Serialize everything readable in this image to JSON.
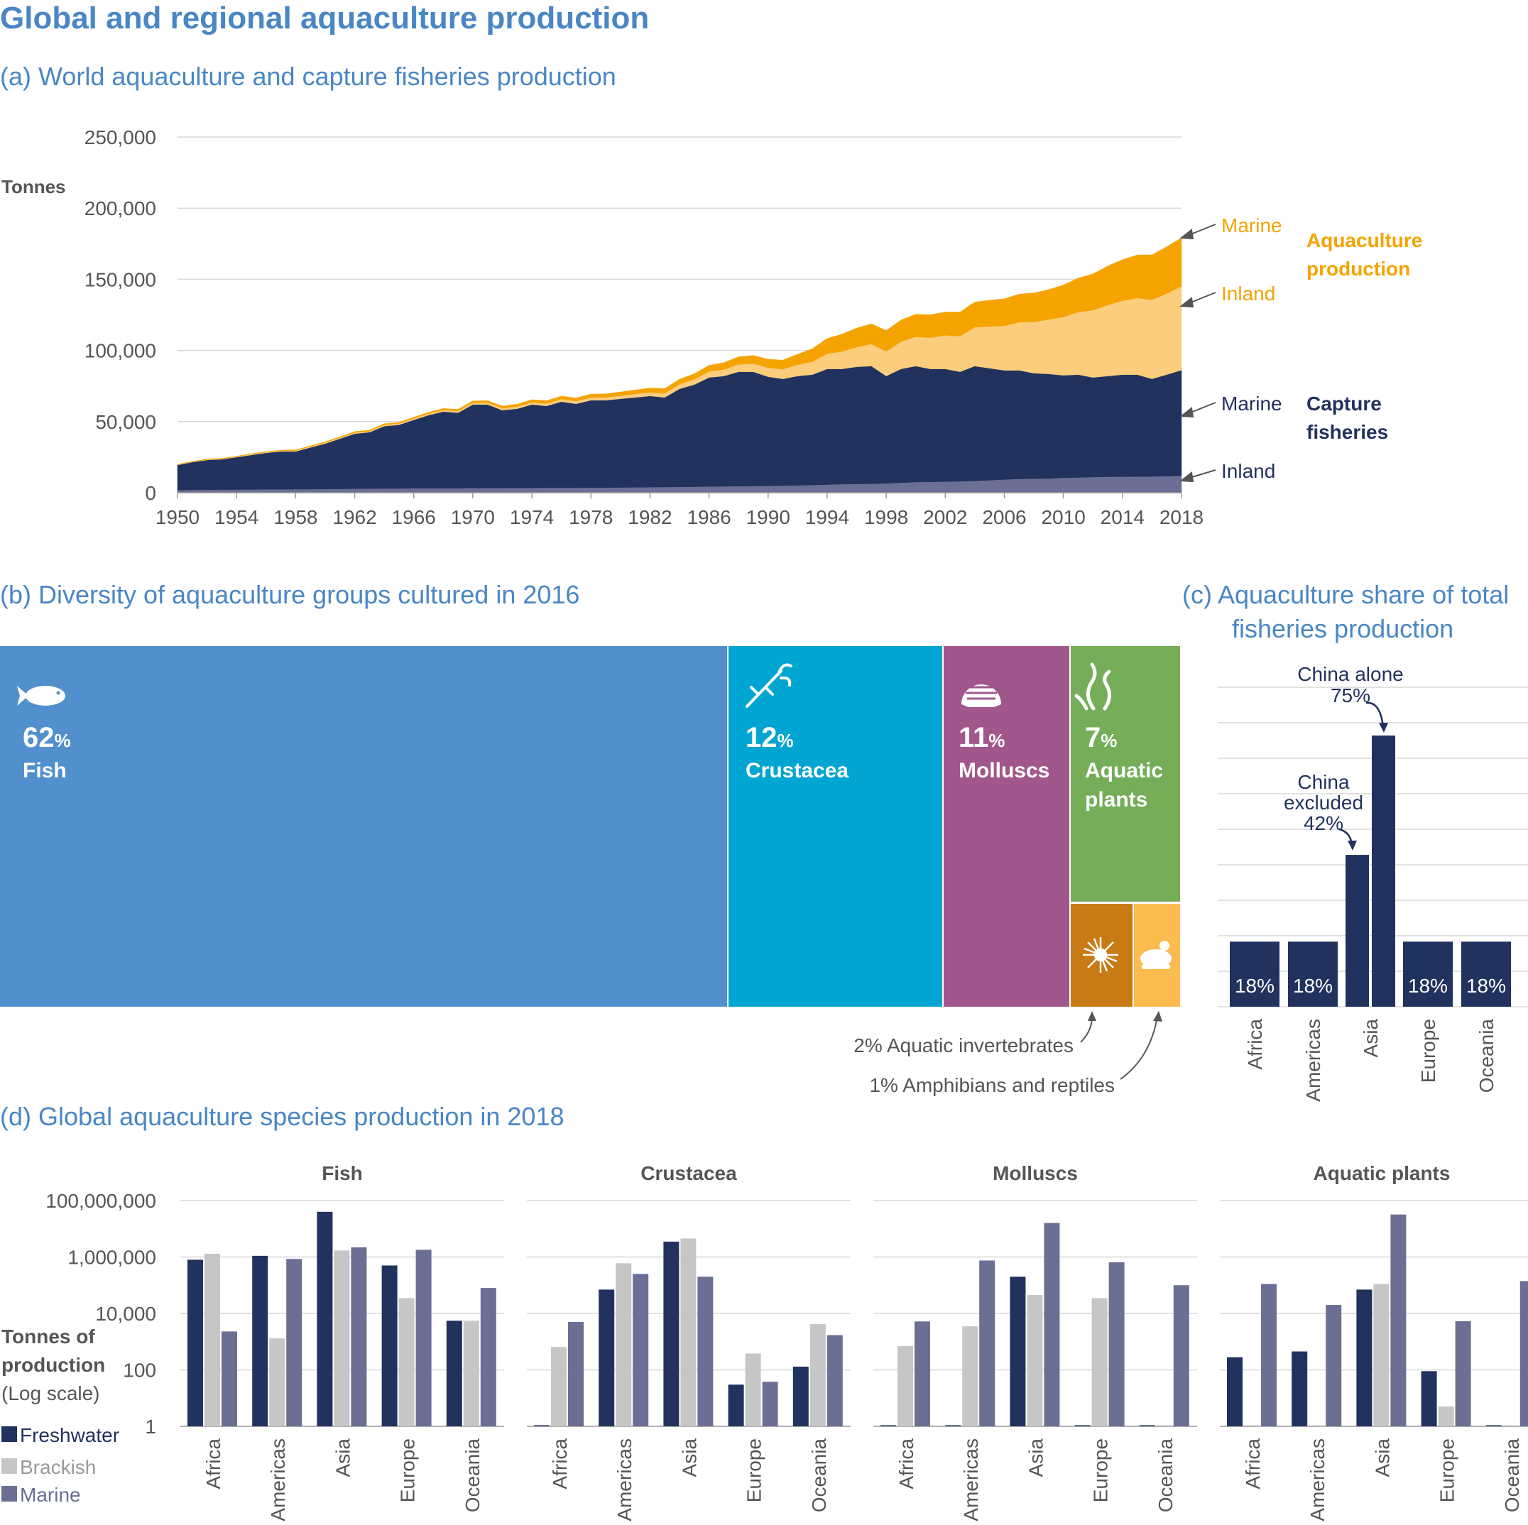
{
  "title": "Global and regional aquaculture production",
  "colors": {
    "title_blue": "#4a86c6",
    "navy": "#21325e",
    "capture_inland": "#6b6f94",
    "aqua_marine": "#f5a300",
    "aqua_inland": "#fbcd7c",
    "fish": "#528fcd",
    "crustacea": "#00a5d2",
    "molluscs": "#a2578c",
    "aquatic_plants": "#75ad58",
    "invertebrates": "#c87a14",
    "amphibians": "#fbbb4e",
    "brackish": "#c6c6c6",
    "marine_bar": "#6b6f94",
    "grid": "#d8d8d8",
    "axis_text": "#555555"
  },
  "panel_a": {
    "subtitle": "(a) World aquaculture and capture fisheries production",
    "y_unit": "Tonnes",
    "y_ticks": [
      "0",
      "50,000",
      "100,000",
      "150,000",
      "200,000",
      "250,000"
    ],
    "x_ticks": [
      "1950",
      "1954",
      "1958",
      "1962",
      "1966",
      "1970",
      "1974",
      "1978",
      "1982",
      "1986",
      "1990",
      "1994",
      "1998",
      "2002",
      "2006",
      "2010",
      "2014",
      "2018"
    ],
    "labels": {
      "aqua_marine": "Marine",
      "aqua_inland": "Inland",
      "aquaculture": [
        "Aquaculture",
        "production"
      ],
      "capture_marine": "Marine",
      "capture_inland": "Inland",
      "capture": [
        "Capture",
        "fisheries"
      ]
    }
  },
  "panel_b": {
    "subtitle": "(b) Diversity of aquaculture groups cultured in 2016",
    "fish": {
      "pct": "62",
      "label": "Fish"
    },
    "crustacea": {
      "pct": "12",
      "label": "Crustacea"
    },
    "molluscs": {
      "pct": "11",
      "label": "Molluscs"
    },
    "plants": {
      "pct": "7",
      "label1": "Aquatic",
      "label2": "plants"
    },
    "pct_sign": "%",
    "invertebrates_note": "2% Aquatic invertebrates",
    "amphibians_note": "1% Amphibians and reptiles"
  },
  "panel_c": {
    "subtitle1": "(c) Aquaculture share of total",
    "subtitle2": "fisheries production",
    "bar_labels": [
      "18%",
      "18%",
      "18%",
      "18%"
    ],
    "regions": [
      "Africa",
      "Americas",
      "Asia",
      "Europe",
      "Oceania"
    ],
    "china_alone": [
      "China alone",
      "75%"
    ],
    "china_excluded": [
      "China",
      "excluded",
      "42%"
    ]
  },
  "panel_d": {
    "subtitle": "(d) Global aquaculture species production in 2018",
    "y_ticks": [
      "1",
      "100",
      "10,000",
      "1,000,000",
      "100,000,000"
    ],
    "y_label": [
      "Tonnes of",
      "production",
      "(Log scale)"
    ],
    "legend": [
      "Freshwater",
      "Brackish",
      "Marine"
    ],
    "regions": [
      "Africa",
      "Americas",
      "Asia",
      "Europe",
      "Oceania"
    ],
    "groups": [
      "Fish",
      "Crustacea",
      "Molluscs",
      "Aquatic plants"
    ]
  },
  "chart_data": [
    {
      "type": "area",
      "title": "(a) World aquaculture and capture fisheries production",
      "ylabel": "Tonnes",
      "ylim": [
        0,
        250000
      ],
      "x": [
        1950,
        1951,
        1952,
        1953,
        1954,
        1955,
        1956,
        1957,
        1958,
        1959,
        1960,
        1961,
        1962,
        1963,
        1964,
        1965,
        1966,
        1967,
        1968,
        1969,
        1970,
        1971,
        1972,
        1973,
        1974,
        1975,
        1976,
        1977,
        1978,
        1979,
        1980,
        1981,
        1982,
        1983,
        1984,
        1985,
        1986,
        1987,
        1988,
        1989,
        1990,
        1991,
        1992,
        1993,
        1994,
        1995,
        1996,
        1997,
        1998,
        1999,
        2000,
        2001,
        2002,
        2003,
        2004,
        2005,
        2006,
        2007,
        2008,
        2009,
        2010,
        2011,
        2012,
        2013,
        2014,
        2015,
        2016,
        2017,
        2018
      ],
      "stacked": true,
      "series": [
        {
          "name": "Capture fisheries - Inland",
          "values": [
            1800,
            2000,
            2100,
            2200,
            2200,
            2300,
            2400,
            2400,
            2500,
            2500,
            2600,
            2700,
            2800,
            2900,
            3000,
            3000,
            3100,
            3200,
            3200,
            3200,
            3300,
            3300,
            3400,
            3400,
            3400,
            3500,
            3500,
            3500,
            3600,
            3600,
            3700,
            3800,
            3900,
            4000,
            4100,
            4200,
            4400,
            4500,
            4600,
            4700,
            4800,
            5000,
            5200,
            5400,
            5700,
            6000,
            6200,
            6300,
            6600,
            7000,
            7500,
            7600,
            7800,
            8000,
            8300,
            8800,
            9300,
            9700,
            9900,
            10000,
            10500,
            10700,
            11000,
            11200,
            11300,
            11400,
            11400,
            11600,
            12000
          ]
        },
        {
          "name": "Capture fisheries - Marine",
          "values": [
            17700,
            19500,
            20900,
            21300,
            22800,
            24200,
            25600,
            26600,
            26500,
            29300,
            31900,
            35300,
            38700,
            39600,
            43800,
            44700,
            48100,
            51300,
            53800,
            53000,
            58700,
            58700,
            54600,
            55600,
            58600,
            57500,
            60500,
            59000,
            61400,
            61400,
            62300,
            63200,
            64100,
            63000,
            68900,
            71800,
            76600,
            77500,
            80400,
            80300,
            76700,
            75000,
            76800,
            77600,
            81300,
            81000,
            82300,
            82700,
            75400,
            80000,
            81500,
            79400,
            79200,
            77000,
            80700,
            78700,
            76700,
            76300,
            74100,
            73500,
            72000,
            72300,
            70000,
            70800,
            71700,
            71600,
            68600,
            71400,
            74200
          ]
        },
        {
          "name": "Aquaculture - Inland",
          "values": [
            300,
            300,
            400,
            400,
            400,
            500,
            500,
            500,
            600,
            600,
            700,
            700,
            800,
            800,
            900,
            900,
            1000,
            1000,
            1100,
            1200,
            1200,
            1300,
            1400,
            1500,
            1600,
            1700,
            1800,
            1900,
            2000,
            2100,
            2200,
            2400,
            2600,
            2900,
            3300,
            3700,
            4200,
            4600,
            5200,
            5800,
            6300,
            6800,
            8000,
            9200,
            10700,
            12300,
            13800,
            15500,
            17300,
            19200,
            20600,
            22000,
            23600,
            25100,
            27300,
            29400,
            31300,
            33800,
            36000,
            38200,
            41000,
            44000,
            47300,
            49900,
            51900,
            53800,
            55600,
            57000,
            59000
          ]
        },
        {
          "name": "Aquaculture - Marine",
          "values": [
            200,
            200,
            300,
            300,
            300,
            400,
            400,
            400,
            500,
            500,
            600,
            600,
            700,
            700,
            800,
            800,
            900,
            1000,
            1100,
            1200,
            1300,
            1400,
            1500,
            1700,
            1800,
            2000,
            2100,
            2200,
            2300,
            2400,
            2600,
            2800,
            3000,
            3300,
            3500,
            3900,
            4300,
            4800,
            5300,
            5700,
            6000,
            6400,
            7300,
            9000,
            10700,
            12100,
            13400,
            14200,
            14700,
            15200,
            15800,
            16100,
            16400,
            16900,
            17700,
            18400,
            19000,
            19800,
            20400,
            21000,
            22500,
            23800,
            25500,
            27400,
            28900,
            30300,
            31600,
            32900,
            34000
          ]
        }
      ]
    },
    {
      "type": "bar",
      "title": "(b) Diversity of aquaculture groups cultured in 2016",
      "categories": [
        "Fish",
        "Crustacea",
        "Molluscs",
        "Aquatic plants",
        "Aquatic invertebrates",
        "Amphibians and reptiles"
      ],
      "values": [
        62,
        12,
        11,
        7,
        2,
        1
      ],
      "unit": "%"
    },
    {
      "type": "bar",
      "title": "(c) Aquaculture share of total fisheries production",
      "categories": [
        "Africa",
        "Americas",
        "Asia (China excluded)",
        "Asia (China alone)",
        "Europe",
        "Oceania"
      ],
      "values": [
        18,
        18,
        42,
        75,
        18,
        18
      ],
      "unit": "%"
    },
    {
      "type": "bar",
      "title": "(d) Global aquaculture species production in 2018",
      "ylabel": "Tonnes of production (Log scale)",
      "ylim": [
        1,
        100000000
      ],
      "log_scale": true,
      "categories": [
        "Africa",
        "Americas",
        "Asia",
        "Europe",
        "Oceania"
      ],
      "panels": [
        {
          "group": "Fish",
          "series": [
            {
              "name": "Freshwater",
              "values": [
                800000,
                1100000,
                40000000,
                500000,
                5500
              ]
            },
            {
              "name": "Brackish",
              "values": [
                1300000,
                1300,
                1700000,
                35000,
                5500
              ]
            },
            {
              "name": "Marine",
              "values": [
                2300,
                850000,
                2200000,
                1800000,
                80000
              ]
            }
          ]
        },
        {
          "group": "Crustacea",
          "series": [
            {
              "name": "Freshwater",
              "values": [
                1,
                70000,
                3500000,
                30,
                130
              ]
            },
            {
              "name": "Brackish",
              "values": [
                650,
                600000,
                4500000,
                380,
                4200
              ]
            },
            {
              "name": "Marine",
              "values": [
                5000,
                250000,
                200000,
                38,
                1700
              ]
            }
          ]
        },
        {
          "group": "Molluscs",
          "series": [
            {
              "name": "Freshwater",
              "values": [
                1,
                1,
                200000,
                1,
                1
              ]
            },
            {
              "name": "Brackish",
              "values": [
                700,
                3500,
                45000,
                35000,
                1
              ]
            },
            {
              "name": "Marine",
              "values": [
                5200,
                750000,
                16000000,
                650000,
                100000
              ]
            }
          ]
        },
        {
          "group": "Aquatic plants",
          "series": [
            {
              "name": "Freshwater",
              "values": [
                280,
                450,
                70000,
                90,
                1
              ]
            },
            {
              "name": "Brackish",
              "values": [
                1,
                1,
                110000,
                5,
                1
              ]
            },
            {
              "name": "Marine",
              "values": [
                110000,
                20000,
                32000000,
                5300,
                140000
              ]
            }
          ]
        }
      ]
    }
  ]
}
